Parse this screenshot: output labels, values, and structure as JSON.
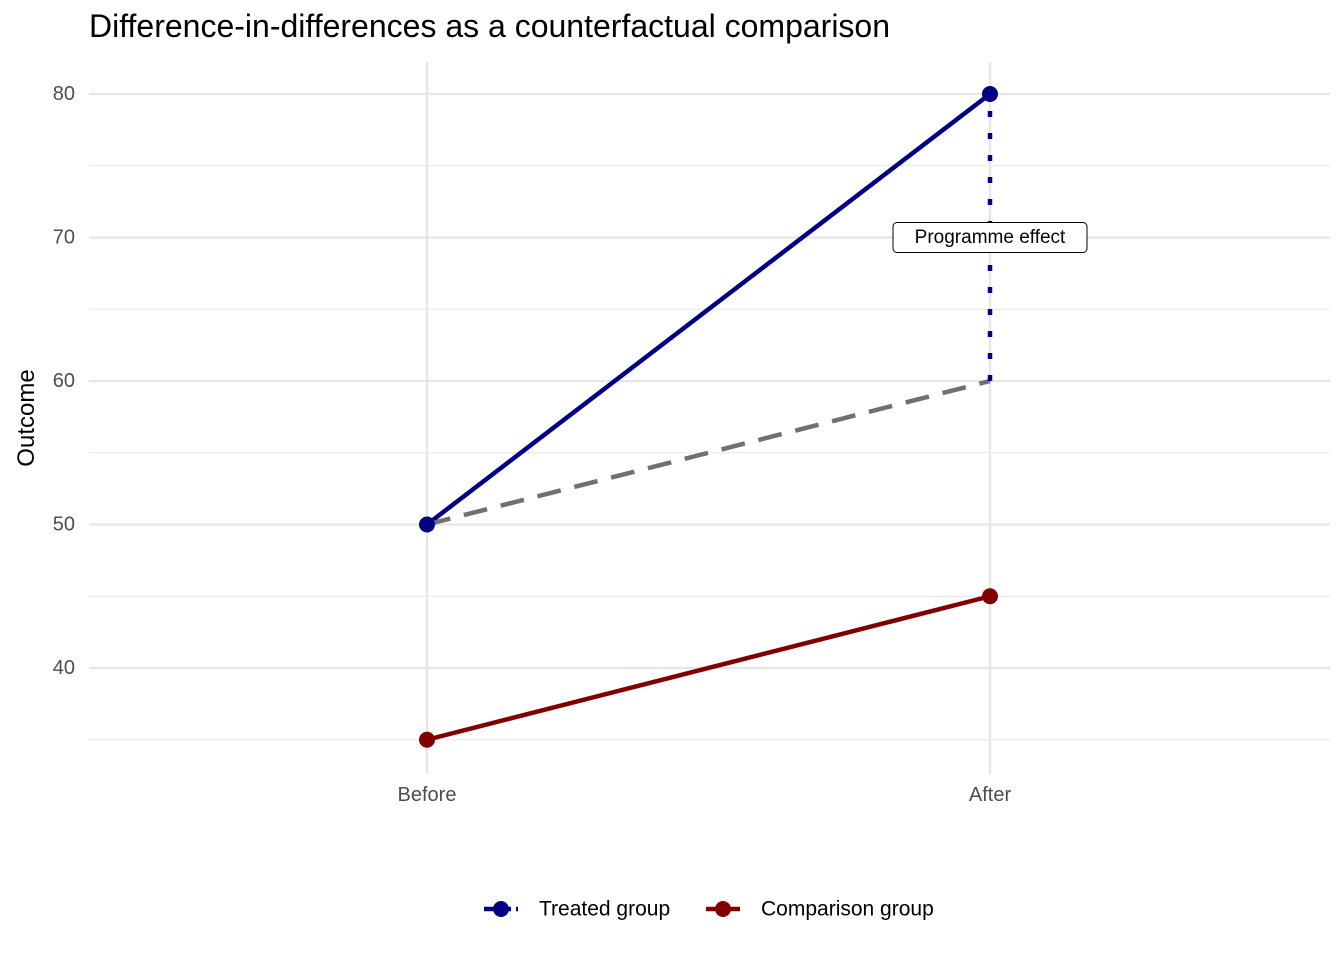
{
  "chart_data": {
    "type": "line",
    "title": "Difference-in-differences as a counterfactual comparison",
    "xlabel": "",
    "ylabel": "Outcome",
    "categories": [
      "Before",
      "After"
    ],
    "ylim": [
      33.5,
      82.2
    ],
    "y_major_ticks": [
      40,
      50,
      60,
      70,
      80
    ],
    "y_minor_ticks": [
      35,
      45,
      55,
      65,
      75
    ],
    "grid": true,
    "series": [
      {
        "name": "Treated group",
        "values": [
          50,
          80
        ],
        "color": "#000080",
        "style": "solid"
      },
      {
        "name": "Comparison group",
        "values": [
          35,
          45
        ],
        "color": "#800000",
        "style": "solid"
      }
    ],
    "counterfactual": {
      "values": [
        50,
        60
      ],
      "color": "#707070",
      "style": "dashed"
    },
    "effect_segment": {
      "category": "After",
      "from": 60,
      "to": 80,
      "color": "#000080",
      "style": "dotted"
    },
    "annotation": {
      "text": "Programme effect",
      "category": "After",
      "y": 70
    },
    "legend_position": "bottom"
  }
}
